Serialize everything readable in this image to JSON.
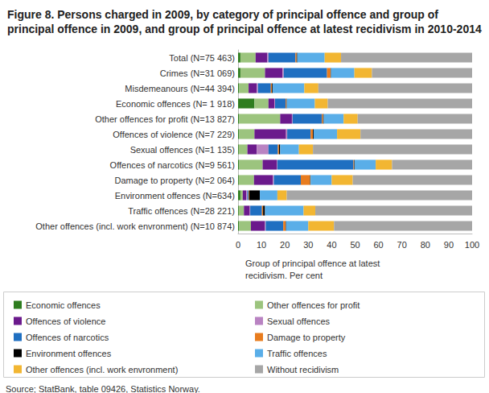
{
  "chart_data": {
    "type": "bar",
    "title": "Figure 8. Persons charged in 2009, by category of principal offence and group of principal offence in 2009, and group of principal offence at latest recidivism in 2010-2014",
    "xlabel": "Group of principal offence at latest recidivism. Per cent",
    "source": "Source; StatBank, table 09426, Statistics Norway.",
    "orientation": "horizontal",
    "stacked": true,
    "grid": false,
    "legend": "bottom",
    "xlim": [
      0,
      100
    ],
    "xticks": [
      0,
      10,
      20,
      30,
      40,
      50,
      60,
      70,
      80,
      90,
      100
    ],
    "categories": [
      "Total (N=75 463)",
      "Crimes (N=31 069)",
      "Misdemeanours (N=44 394)",
      "Economic offences (N= 1 918)",
      "Other offences for profit (N=13 827)",
      "Offences of violence (N=7 229)",
      "Sexual offences (N=1 135)",
      "Offences of narcotics (N=9 561)",
      "Damage to property (N=2 064)",
      "Environment offences (N=634)",
      "Traffic offences (N=28 221)",
      "Other offences (incl. work envronment) (N=10 874)"
    ],
    "series": [
      {
        "name": "Economic offences",
        "color": "#2e7d1f",
        "values": [
          1,
          1,
          0.5,
          7,
          0.5,
          0.5,
          0.3,
          0.5,
          0.3,
          1,
          0.3,
          0.5
        ]
      },
      {
        "name": "Other offences for profit",
        "color": "#9cc47e",
        "values": [
          6.5,
          10.5,
          4,
          6,
          17.5,
          6.5,
          3.7,
          10,
          6.5,
          1,
          2.2,
          5
        ]
      },
      {
        "name": "Offences of violence",
        "color": "#6b1a8c",
        "values": [
          5,
          7.5,
          3.5,
          2.5,
          5,
          13.5,
          4,
          6,
          8,
          1.5,
          2.5,
          6
        ]
      },
      {
        "name": "Sexual offences",
        "color": "#b983c2",
        "values": [
          0.5,
          0.5,
          0.5,
          0.3,
          0.3,
          0.5,
          5,
          0.3,
          0.5,
          0.5,
          0.2,
          0.3
        ]
      },
      {
        "name": "Offences of narcotics",
        "color": "#1f6fc1",
        "values": [
          11.5,
          18.5,
          5.5,
          4.5,
          12.5,
          10,
          4,
          32.5,
          11.5,
          0.5,
          5,
          7.5
        ]
      },
      {
        "name": "Damage to property",
        "color": "#e87c1e",
        "values": [
          0.5,
          1.5,
          0.5,
          0.3,
          0.5,
          1,
          0.5,
          0.3,
          4,
          0.3,
          0.5,
          1
        ]
      },
      {
        "name": "Environment offences",
        "color": "#000000",
        "values": [
          0.3,
          0.2,
          0.3,
          0.2,
          0.3,
          0.3,
          0.5,
          0.2,
          0.2,
          4.5,
          0.8,
          0.2
        ]
      },
      {
        "name": "Traffic offences",
        "color": "#5aaee8",
        "values": [
          11.7,
          10,
          13.5,
          12,
          8.5,
          10,
          8,
          9,
          9,
          7.5,
          16.5,
          9.5
        ]
      },
      {
        "name": "Other offences (incl. work envronment)",
        "color": "#f2b632",
        "values": [
          7,
          7.5,
          6,
          5.5,
          6,
          10,
          6,
          7,
          9,
          4,
          5,
          11
        ]
      },
      {
        "name": "Without recidivism",
        "color": "#a6a6a6",
        "values": [
          56,
          42.8,
          65.7,
          61.7,
          48.9,
          47.7,
          68,
          34.2,
          51,
          79.2,
          67,
          59
        ]
      }
    ]
  }
}
